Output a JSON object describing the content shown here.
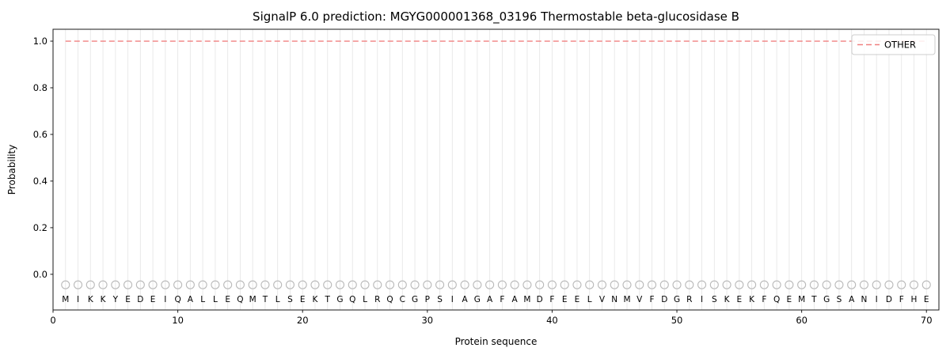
{
  "chart_data": {
    "type": "line",
    "title": "SignalP 6.0 prediction: MGYG000001368_03196 Thermostable beta-glucosidase B",
    "xlabel": "Protein sequence",
    "ylabel": "Probability",
    "xlim": [
      0,
      71
    ],
    "ylim": [
      -0.153,
      1.051
    ],
    "xticks": [
      0,
      10,
      20,
      30,
      40,
      50,
      60,
      70
    ],
    "yticks": [
      0.0,
      0.2,
      0.4,
      0.6,
      0.8,
      1.0
    ],
    "xticklabels": [
      "0",
      "10",
      "20",
      "30",
      "40",
      "50",
      "60",
      "70"
    ],
    "yticklabels": [
      "0.0",
      "0.2",
      "0.4",
      "0.6",
      "0.8",
      "1.0"
    ],
    "grid": "vertical line at every residue position, no horizontal grid",
    "legend": {
      "position": "upper right",
      "entries": [
        {
          "label": "OTHER",
          "color": "#f08080",
          "linestyle": "dashed"
        }
      ]
    },
    "series": [
      {
        "name": "OTHER",
        "color": "#f08080",
        "linestyle": "dashed",
        "x_start": 1,
        "x_end": 70,
        "y_constant": 1.0
      }
    ],
    "sequence": [
      "M",
      "I",
      "K",
      "K",
      "Y",
      "E",
      "D",
      "E",
      "I",
      "Q",
      "A",
      "L",
      "L",
      "E",
      "Q",
      "M",
      "T",
      "L",
      "S",
      "E",
      "K",
      "T",
      "G",
      "Q",
      "L",
      "R",
      "Q",
      "C",
      "G",
      "P",
      "S",
      "I",
      "A",
      "G",
      "A",
      "F",
      "A",
      "M",
      "D",
      "F",
      "E",
      "E",
      "L",
      "V",
      "N",
      "M",
      "V",
      "F",
      "D",
      "G",
      "R",
      "I",
      "S",
      "K",
      "E",
      "K",
      "F",
      "Q",
      "E",
      "M",
      "T",
      "G",
      "S",
      "A",
      "N",
      "I",
      "D",
      "F",
      "H",
      "E"
    ],
    "marker": {
      "shape": "open-circle",
      "y": -0.045
    },
    "letter_y": -0.105,
    "colors": {
      "other_line": "#f08080",
      "grid": "#e7e7e7",
      "marker": "#b9b9b9",
      "letter": "#3a3a3a",
      "spine": "#1a1a1a",
      "legend_border": "#cccccc"
    }
  }
}
